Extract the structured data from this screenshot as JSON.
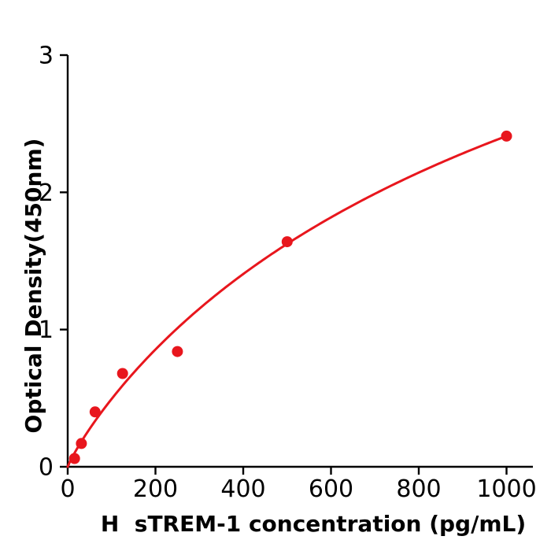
{
  "chart_data": {
    "type": "scatter",
    "title": "",
    "xlabel": "H  sTREM-1 concentration (pg/mL)",
    "ylabel": "Optical Density(450nm)",
    "x_unit": "pg/mL",
    "y_unit": "OD 450nm",
    "x_ticks": [
      0,
      200,
      400,
      600,
      800,
      1000
    ],
    "y_ticks": [
      0,
      1,
      2,
      3
    ],
    "xlim": [
      0,
      1060
    ],
    "ylim": [
      0,
      3
    ],
    "grid": false,
    "legend": "none",
    "points": [
      {
        "x": 15.6,
        "y": 0.06
      },
      {
        "x": 31.2,
        "y": 0.17
      },
      {
        "x": 62.5,
        "y": 0.4
      },
      {
        "x": 125,
        "y": 0.68
      },
      {
        "x": 250,
        "y": 0.84
      },
      {
        "x": 500,
        "y": 1.64
      },
      {
        "x": 1000,
        "y": 2.41
      }
    ],
    "fit_curve": {
      "model": "4PL",
      "a": 0,
      "d": 5.462,
      "c": 1300,
      "b": 0.9,
      "x_start": 0,
      "x_end": 1000
    },
    "point_color": "#e8161d",
    "line_color": "#e8161d",
    "axis_color": "#000000",
    "marker_radius": 7,
    "curve_width": 3
  }
}
